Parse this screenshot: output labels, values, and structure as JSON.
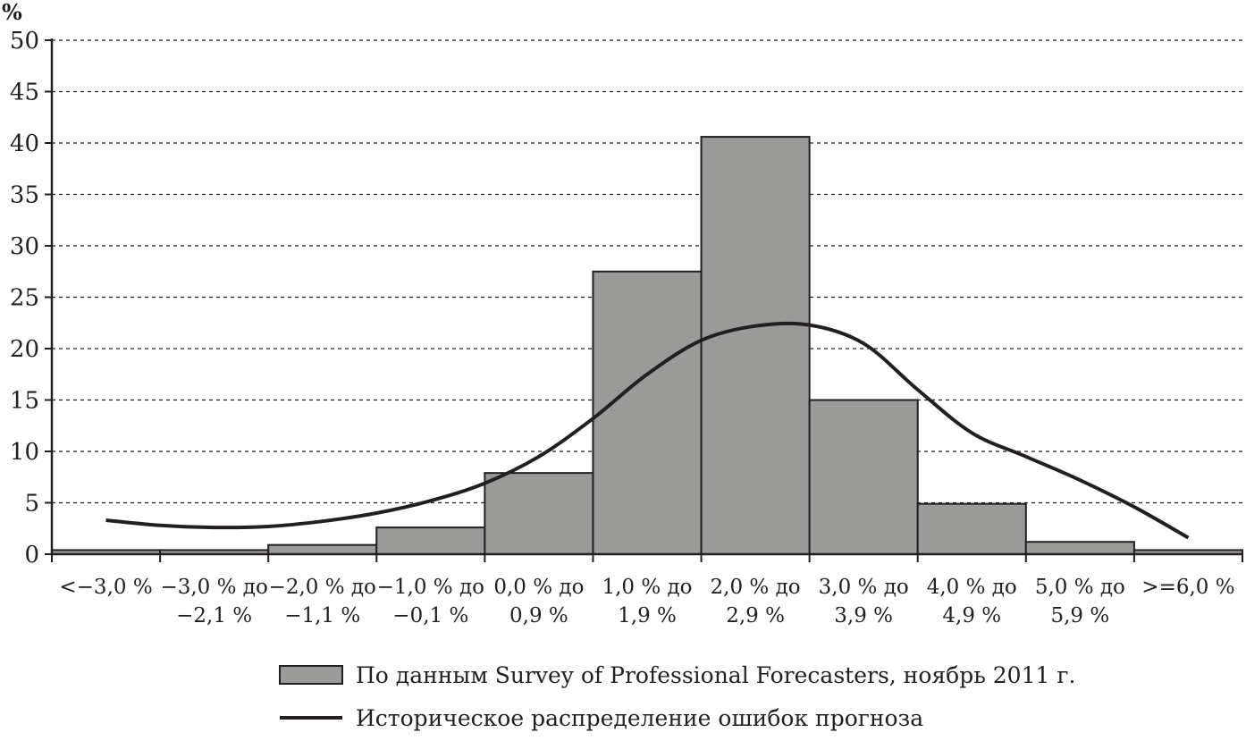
{
  "chart_data": {
    "type": "bar",
    "ylabel": "%",
    "ylim": [
      0,
      50
    ],
    "yticks": [
      0,
      5,
      10,
      15,
      20,
      25,
      30,
      35,
      40,
      45,
      50
    ],
    "grid": true,
    "legend_placement": "bottom",
    "categories": [
      [
        "<−3,0 %"
      ],
      [
        "−3,0 % до",
        "−2,1 %"
      ],
      [
        "−2,0 % до",
        "−1,1 %"
      ],
      [
        "−1,0 % до",
        "−0,1 %"
      ],
      [
        "0,0 % до",
        "0,9 %"
      ],
      [
        "1,0 % до",
        "1,9 %"
      ],
      [
        "2,0 % до",
        "2,9 %"
      ],
      [
        "3,0 % до",
        "3,9 %"
      ],
      [
        "4,0 % до",
        "4,9 %"
      ],
      [
        "5,0 % до",
        "5,9 %"
      ],
      [
        ">=6,0 %"
      ]
    ],
    "series": [
      {
        "name": "По данным Survey of Professional Forecasters, ноябрь 2011 г.",
        "type": "bar",
        "color": "#9a9a99",
        "values": [
          0.4,
          0.4,
          0.9,
          2.6,
          7.9,
          27.5,
          40.6,
          15.0,
          4.9,
          1.2,
          0.4
        ]
      },
      {
        "name": "Историческое распределение ошибок прогноза",
        "type": "line",
        "color": "#231f20",
        "x": [
          0,
          0.5,
          1,
          1.5,
          2,
          2.5,
          3,
          3.5,
          4,
          4.5,
          5,
          5.5,
          6,
          6.5,
          7,
          7.5,
          8,
          8.5,
          9,
          9.5,
          10
        ],
        "values": [
          3.3,
          2.8,
          2.6,
          2.7,
          3.2,
          4.0,
          5.2,
          6.9,
          9.5,
          13.2,
          17.5,
          20.8,
          22.2,
          22.3,
          20.5,
          16.0,
          11.8,
          9.5,
          7.2,
          4.6,
          1.6
        ]
      }
    ]
  }
}
